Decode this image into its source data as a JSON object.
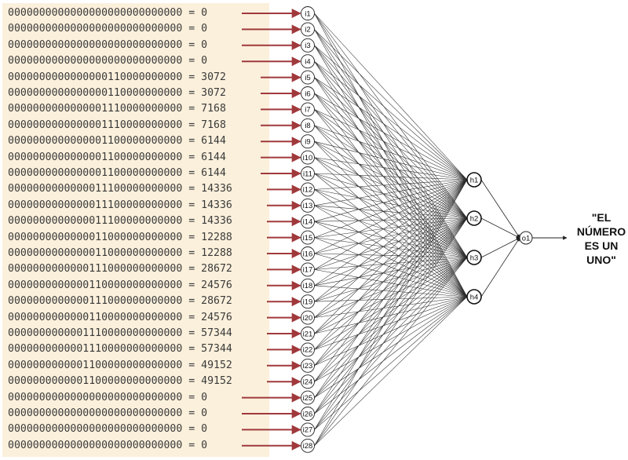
{
  "inputs": [
    {
      "bits": "0000000000000000000000000000",
      "value": "0",
      "label": "i1"
    },
    {
      "bits": "0000000000000000000000000000",
      "value": "0",
      "label": "i2"
    },
    {
      "bits": "0000000000000000000000000000",
      "value": "0",
      "label": "i3"
    },
    {
      "bits": "0000000000000000000000000000",
      "value": "0",
      "label": "i4"
    },
    {
      "bits": "0000000000000000110000000000",
      "value": "3072",
      "label": "i5"
    },
    {
      "bits": "0000000000000000110000000000",
      "value": "3072",
      "label": "i6"
    },
    {
      "bits": "0000000000000001110000000000",
      "value": "7168",
      "label": "i7"
    },
    {
      "bits": "0000000000000001110000000000",
      "value": "7168",
      "label": "i8"
    },
    {
      "bits": "0000000000000001100000000000",
      "value": "6144",
      "label": "i9"
    },
    {
      "bits": "0000000000000001100000000000",
      "value": "6144",
      "label": "i10"
    },
    {
      "bits": "0000000000000001100000000000",
      "value": "6144",
      "label": "i11"
    },
    {
      "bits": "0000000000000011100000000000",
      "value": "14336",
      "label": "i12"
    },
    {
      "bits": "0000000000000011100000000000",
      "value": "14336",
      "label": "i13"
    },
    {
      "bits": "0000000000000011100000000000",
      "value": "14336",
      "label": "i14"
    },
    {
      "bits": "0000000000000011000000000000",
      "value": "12288",
      "label": "i15"
    },
    {
      "bits": "0000000000000011000000000000",
      "value": "12288",
      "label": "i16"
    },
    {
      "bits": "0000000000000111000000000000",
      "value": "28672",
      "label": "i17"
    },
    {
      "bits": "0000000000000110000000000000",
      "value": "24576",
      "label": "i18"
    },
    {
      "bits": "0000000000000111000000000000",
      "value": "28672",
      "label": "i19"
    },
    {
      "bits": "0000000000000110000000000000",
      "value": "24576",
      "label": "i20"
    },
    {
      "bits": "0000000000001110000000000000",
      "value": "57344",
      "label": "i21"
    },
    {
      "bits": "0000000000001110000000000000",
      "value": "57344",
      "label": "i22"
    },
    {
      "bits": "0000000000001100000000000000",
      "value": "49152",
      "label": "i23"
    },
    {
      "bits": "0000000000001100000000000000",
      "value": "49152",
      "label": "i24"
    },
    {
      "bits": "0000000000000000000000000000",
      "value": "0",
      "label": "i25"
    },
    {
      "bits": "0000000000000000000000000000",
      "value": "0",
      "label": "i26"
    },
    {
      "bits": "0000000000000000000000000000",
      "value": "0",
      "label": "i27"
    },
    {
      "bits": "0000000000000000000000000000",
      "value": "0",
      "label": "i28"
    }
  ],
  "hidden": [
    "h1",
    "h2",
    "h3",
    "h4"
  ],
  "output_node": "o1",
  "output_text": [
    "\"EL",
    "NÚMERO",
    "ES UN",
    "UNO\""
  ],
  "colors": {
    "arrow": "#a0393c",
    "panel": "#fbf0dc",
    "edge": "#2b2b2b"
  }
}
